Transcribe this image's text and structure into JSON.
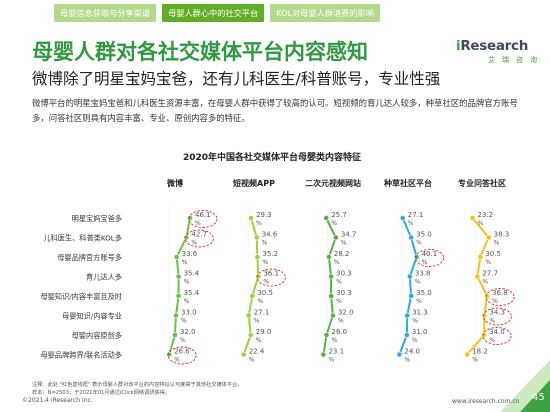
{
  "header": {
    "tabs": [
      {
        "label": "母婴信息获取与分享渠道",
        "active": false
      },
      {
        "label": "母婴人群心中的社交平台",
        "active": true
      },
      {
        "label": "KOL对母婴人群消费的影响",
        "active": false
      }
    ]
  },
  "brand": {
    "logo_i": "i",
    "logo_rest": "Research",
    "logo_sub": "艾瑞咨询"
  },
  "title": "母婴人群对各社交媒体平台内容感知",
  "subtitle": "微博除了明星宝妈宝爸，还有儿科医生/科普账号，专业性强",
  "description": "微博平台的明星宝妈宝爸和儿科医生资源丰富，在母婴人群中获得了较高的认可。短视频的育儿达人较多，种草社区的品牌官方账号多，问答社区则具有内容丰富、专业、原创内容多的特征。",
  "chart_data": {
    "type": "line",
    "title": "2020年中国各社交媒体平台母婴类内容特征",
    "categories": [
      "明星宝妈宝爸多",
      "儿科医生、科普类KOL多",
      "母婴品牌官方账号多",
      "育儿达人多",
      "母婴知识/内容丰富且及时",
      "母婴知识/内容专业",
      "母婴内容原创多",
      "母婴品牌跨界/联名活动多"
    ],
    "unit": "%",
    "series": [
      {
        "name": "微博",
        "color": "#6cc04a",
        "values": [
          46.1,
          42.7,
          33.6,
          35.4,
          35.4,
          33.0,
          32.0,
          26.6
        ],
        "highlight": [
          true,
          true,
          false,
          false,
          false,
          false,
          false,
          true
        ]
      },
      {
        "name": "短视频APP",
        "color": "#a3cf3e",
        "values": [
          29.3,
          34.6,
          35.2,
          36.1,
          30.5,
          27.1,
          29.0,
          22.4
        ],
        "highlight": [
          false,
          false,
          false,
          true,
          false,
          false,
          false,
          false
        ]
      },
      {
        "name": "二次元视频网站",
        "color": "#5aaf44",
        "values": [
          25.7,
          34.7,
          28.2,
          30.3,
          30.3,
          32.0,
          26.0,
          23.1
        ],
        "highlight": [
          false,
          false,
          false,
          false,
          false,
          false,
          false,
          false
        ]
      },
      {
        "name": "种草社区平台",
        "color": "#2ea9df",
        "values": [
          27.1,
          35.0,
          40.1,
          33.8,
          35.0,
          31.3,
          31.0,
          24.0
        ],
        "highlight": [
          false,
          false,
          true,
          false,
          false,
          false,
          false,
          false
        ]
      },
      {
        "name": "专业问答社区",
        "color": "#f5c218",
        "values": [
          23.2,
          38.3,
          30.5,
          27.7,
          36.8,
          34.3,
          34.0,
          18.2
        ],
        "highlight": [
          false,
          false,
          false,
          false,
          true,
          true,
          true,
          false
        ]
      }
    ]
  },
  "footer": {
    "note1": "注释：此处 \"红色虚线框\" 表示母婴人群对该平台的内容特征认可度高于其他社交媒体平台。",
    "note2": "样本：N=2503；于2021年01月通过iClick网络调研获得。",
    "copyright": "©2021.4 iResearch Inc.",
    "website": "www.iresearch.com.cn",
    "page": "45"
  },
  "colors": {
    "brand_green": "#2e9a3f",
    "axis_line": "#dddddd",
    "highlight": "#e0312d"
  }
}
